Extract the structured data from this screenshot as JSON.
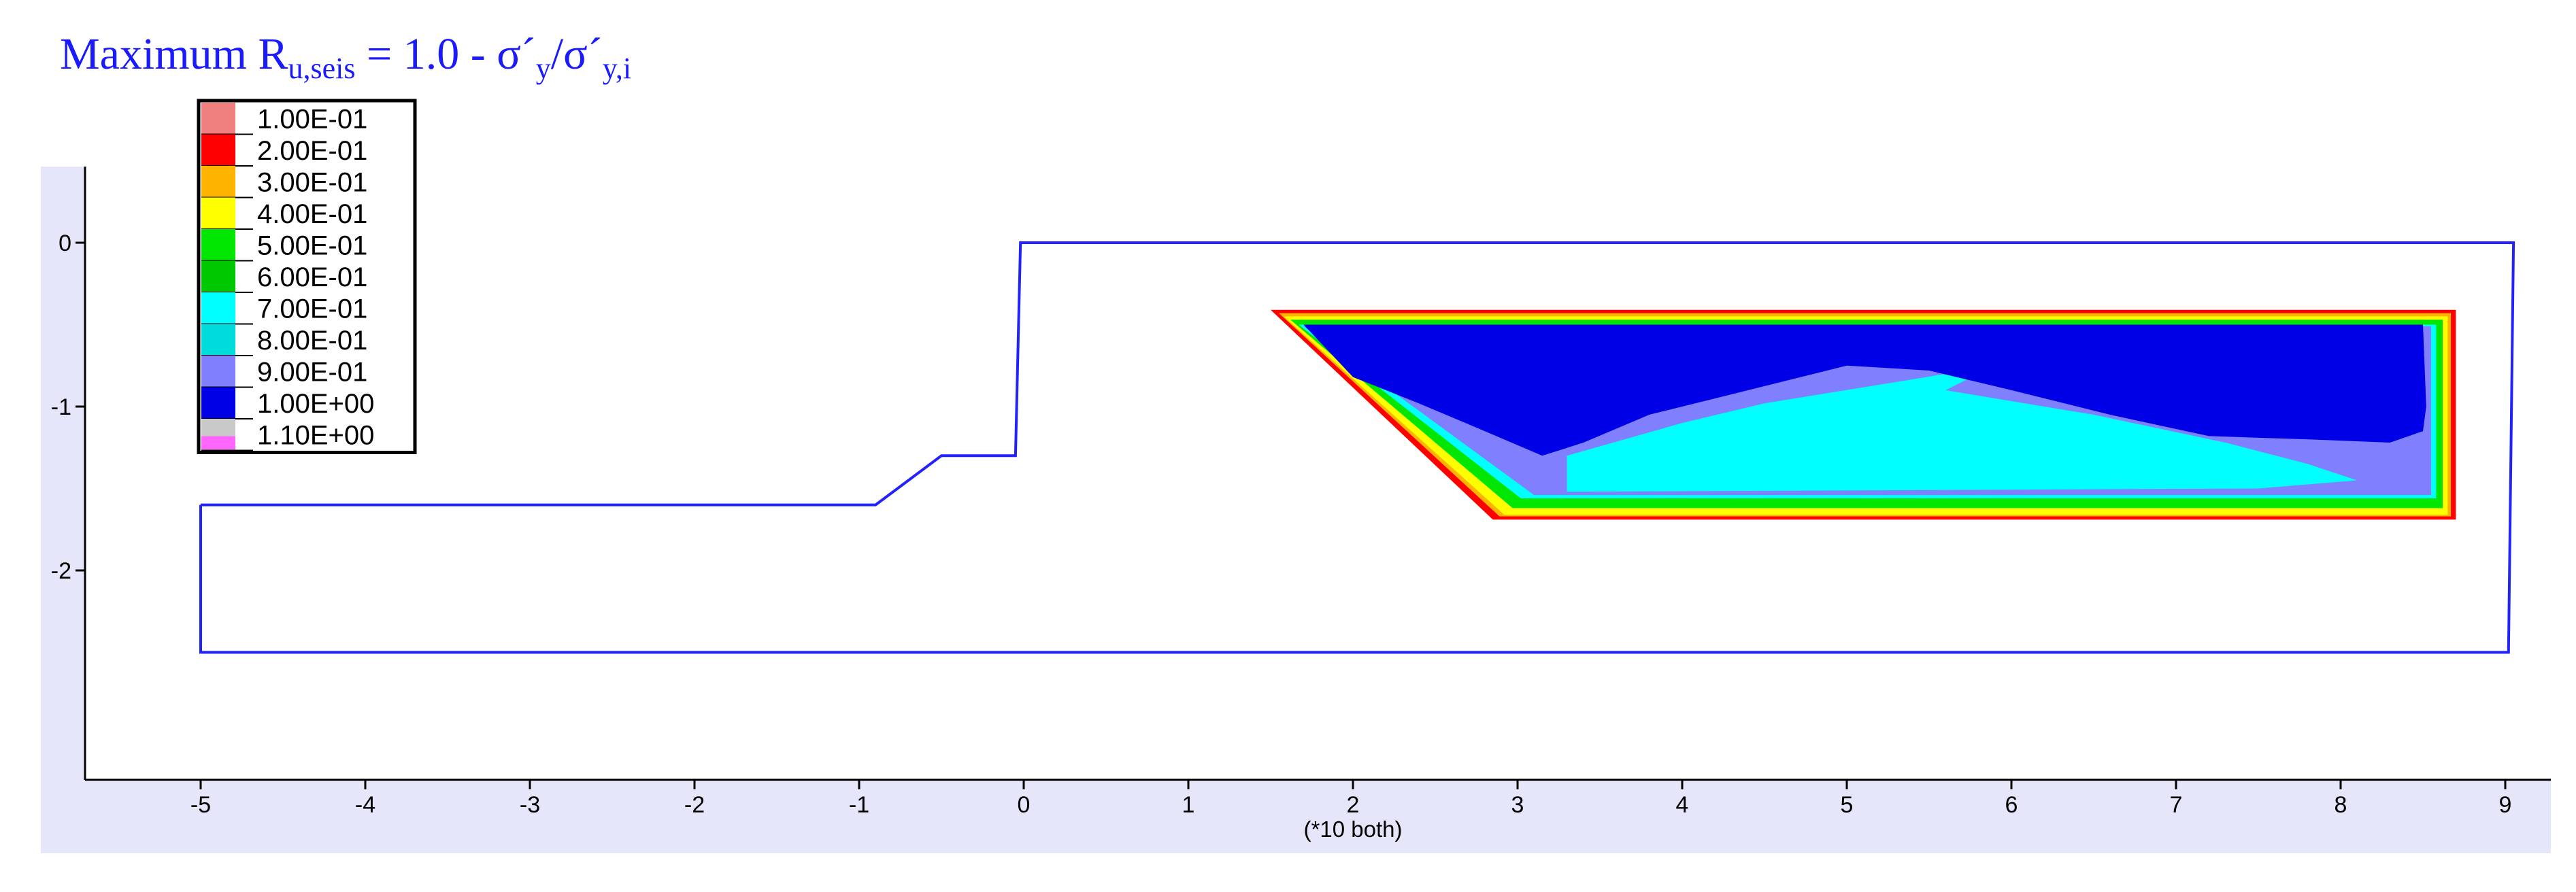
{
  "title": {
    "prefix": "Maximum R",
    "prefix_sub": "u,seis",
    "middle": " = 1.0 -  σ´",
    "y_sub": "y",
    "slash": "/σ´",
    "yi_sub": "y,i"
  },
  "colors": {
    "frame_background": "#e6e6fa",
    "boundary_line": "#2222ff",
    "axis": "#000000",
    "title": "#1a1aff"
  },
  "chart_data": {
    "type": "heatmap",
    "title": "Maximum R_u,seis = 1.0 - σ´y/σ´y,i",
    "x_ticks": [
      -5,
      -4,
      -3,
      -2,
      -1,
      0,
      1,
      2,
      3,
      4,
      5,
      6,
      7,
      8,
      9
    ],
    "y_ticks": [
      0,
      -1,
      -2
    ],
    "x_tick_labels": [
      "-5",
      "-4",
      "-3",
      "-2",
      "-1",
      "0",
      "1",
      "2",
      "3",
      "4",
      "5",
      "6",
      "7",
      "8",
      "9"
    ],
    "y_tick_labels": [
      "0",
      "-1",
      "-2"
    ],
    "xlim": [
      -5.7,
      10.2
    ],
    "ylim": [
      -3.25,
      0.45
    ],
    "axis_note": "(*10 both)",
    "grid": false,
    "legend_position": "top-left",
    "legend": [
      {
        "label": "1.00E-01",
        "color": "#f08080"
      },
      {
        "label": "2.00E-01",
        "color": "#ff0000"
      },
      {
        "label": "3.00E-01",
        "color": "#ffb400"
      },
      {
        "label": "4.00E-01",
        "color": "#ffff00"
      },
      {
        "label": "5.00E-01",
        "color": "#00e600"
      },
      {
        "label": "6.00E-01",
        "color": "#00c800"
      },
      {
        "label": "7.00E-01",
        "color": "#00ffff"
      },
      {
        "label": "8.00E-01",
        "color": "#00dcdc"
      },
      {
        "label": "9.00E-01",
        "color": "#8080ff"
      },
      {
        "label": "1.00E+00",
        "color": "#0000e6"
      },
      {
        "label": "1.10E+00",
        "color": "#c8c8c8"
      }
    ],
    "legend_extra_swatch": "#ff66ff",
    "boundary": [
      [
        -5,
        -1.6
      ],
      [
        -0.9,
        -1.6
      ],
      [
        -0.5,
        -1.3
      ],
      [
        -0.05,
        -1.3
      ],
      [
        -0.05,
        -1.3
      ],
      [
        -0.02,
        0
      ],
      [
        9.05,
        0
      ],
      [
        9.02,
        -2.5
      ],
      [
        -5,
        -2.5
      ]
    ],
    "bands": [
      {
        "level": "2.00E-01",
        "color": "#ff0000",
        "polygon": [
          [
            1.5,
            -0.41
          ],
          [
            8.7,
            -0.41
          ],
          [
            8.7,
            -1.69
          ],
          [
            2.85,
            -1.69
          ]
        ]
      },
      {
        "level": "3.00E-01",
        "color": "#ffb400",
        "polygon": [
          [
            1.55,
            -0.43
          ],
          [
            8.67,
            -0.43
          ],
          [
            8.67,
            -1.67
          ],
          [
            2.89,
            -1.67
          ]
        ]
      },
      {
        "level": "4.00E-01",
        "color": "#ffff00",
        "polygon": [
          [
            1.58,
            -0.45
          ],
          [
            8.65,
            -0.45
          ],
          [
            8.65,
            -1.66
          ],
          [
            2.92,
            -1.66
          ]
        ]
      },
      {
        "level": "5.00E-01",
        "color": "#00e600",
        "polygon": [
          [
            1.62,
            -0.47
          ],
          [
            8.62,
            -0.47
          ],
          [
            8.62,
            -1.62
          ],
          [
            2.97,
            -1.62
          ]
        ]
      },
      {
        "level": "7.00E-01",
        "color": "#00ffff",
        "polygon": [
          [
            1.67,
            -0.5
          ],
          [
            8.58,
            -0.5
          ],
          [
            8.58,
            -1.56
          ],
          [
            3.02,
            -1.56
          ]
        ]
      },
      {
        "level": "9.00E-01",
        "color": "#8080ff",
        "polygon": [
          [
            1.7,
            -0.51
          ],
          [
            8.55,
            -0.51
          ],
          [
            8.55,
            -1.54
          ],
          [
            3.1,
            -1.54
          ]
        ]
      },
      {
        "level": "7.00E-01",
        "color": "#00ffff",
        "polygon": [
          [
            3.3,
            -1.3
          ],
          [
            4.0,
            -1.1
          ],
          [
            4.5,
            -0.98
          ],
          [
            5.3,
            -0.85
          ],
          [
            5.9,
            -0.75
          ],
          [
            5.6,
            -0.9
          ],
          [
            6.5,
            -1.05
          ],
          [
            7.3,
            -1.22
          ],
          [
            7.8,
            -1.35
          ],
          [
            8.1,
            -1.45
          ],
          [
            7.5,
            -1.5
          ],
          [
            3.3,
            -1.52
          ]
        ]
      },
      {
        "level": "1.00E+00",
        "color": "#0000e6",
        "polygon": [
          [
            1.7,
            -0.5
          ],
          [
            8.5,
            -0.5
          ],
          [
            8.52,
            -1.0
          ],
          [
            8.5,
            -1.15
          ],
          [
            8.3,
            -1.22
          ],
          [
            7.8,
            -1.2
          ],
          [
            7.2,
            -1.18
          ],
          [
            6.6,
            -1.05
          ],
          [
            6.0,
            -0.9
          ],
          [
            5.5,
            -0.78
          ],
          [
            5.0,
            -0.75
          ],
          [
            4.6,
            -0.85
          ],
          [
            4.2,
            -0.95
          ],
          [
            3.8,
            -1.05
          ],
          [
            3.4,
            -1.22
          ],
          [
            3.15,
            -1.3
          ],
          [
            2.8,
            -1.15
          ],
          [
            2.4,
            -0.98
          ],
          [
            2.0,
            -0.82
          ]
        ]
      }
    ]
  }
}
